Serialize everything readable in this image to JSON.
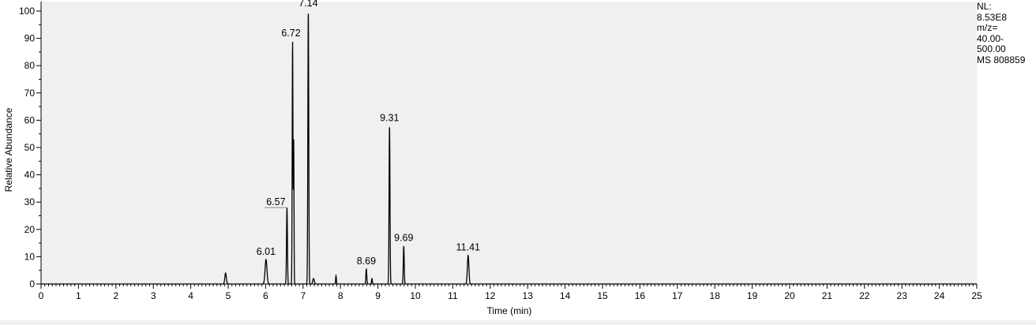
{
  "chart_data": {
    "type": "line",
    "title": "",
    "xlabel": "Time (min)",
    "ylabel": "Relative Abundance",
    "xlim": [
      0,
      25
    ],
    "ylim": [
      0,
      100
    ],
    "x_ticks": [
      "0",
      "1",
      "2",
      "3",
      "4",
      "5",
      "6",
      "7",
      "8",
      "9",
      "10",
      "11",
      "12",
      "13",
      "14",
      "15",
      "16",
      "17",
      "18",
      "19",
      "20",
      "21",
      "22",
      "23",
      "24",
      "25"
    ],
    "y_ticks": [
      "0",
      "10",
      "20",
      "30",
      "40",
      "50",
      "60",
      "70",
      "80",
      "90",
      "100"
    ],
    "grid": false,
    "colors": {
      "trace": "#000000",
      "plot_bg": "#f0f0f0",
      "annotation_connector": "#4caf50"
    },
    "peaks": [
      {
        "x": 4.93,
        "y": 4,
        "width": 0.02
      },
      {
        "x": 6.01,
        "y": 9,
        "label": "6.01",
        "width": 0.025
      },
      {
        "x": 6.57,
        "y": 28,
        "label": "6.57",
        "width": 0.012
      },
      {
        "x": 6.72,
        "y": 89,
        "label": "6.72",
        "width": 0.01
      },
      {
        "x": 6.75,
        "y": 52,
        "width": 0.008
      },
      {
        "x": 7.14,
        "y": 100,
        "label": "7.14",
        "width": 0.012
      },
      {
        "x": 7.28,
        "y": 2,
        "width": 0.02
      },
      {
        "x": 7.88,
        "y": 3,
        "width": 0.01
      },
      {
        "x": 8.69,
        "y": 5.5,
        "label": "8.69",
        "width": 0.012
      },
      {
        "x": 8.84,
        "y": 2,
        "width": 0.01
      },
      {
        "x": 9.31,
        "y": 58,
        "label": "9.31",
        "width": 0.012
      },
      {
        "x": 9.69,
        "y": 14,
        "label": "9.69",
        "width": 0.012
      },
      {
        "x": 11.41,
        "y": 10.5,
        "label": "11.41",
        "width": 0.02
      }
    ]
  },
  "info_box": {
    "lines": [
      "NL:",
      "8.53E8",
      "m/z=",
      "40.00-",
      "500.00",
      "MS 808859"
    ]
  }
}
